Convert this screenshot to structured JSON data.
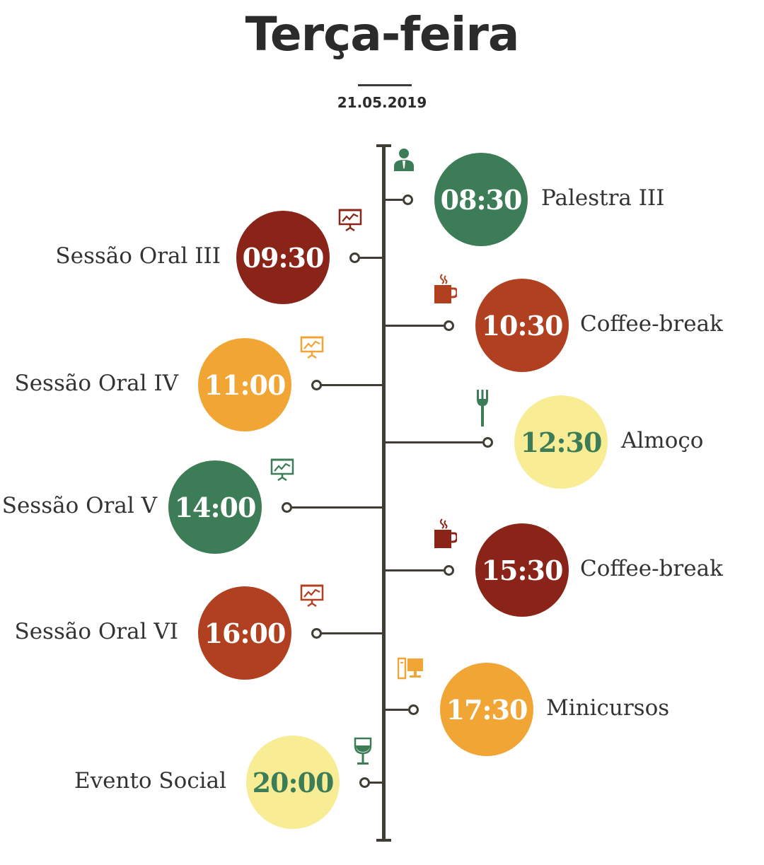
{
  "header": {
    "title": "Terça-feira",
    "date": "21.05.2019"
  },
  "colors": {
    "green": "#3c7d57",
    "dark_red": "#8b2418",
    "rust": "#b0401f",
    "orange": "#f1a535",
    "light_yellow": "#f8ec95",
    "line": "#3f3d34"
  },
  "events": [
    {
      "time": "08:30",
      "label": "Palestra III",
      "side": "right",
      "color": "#3c7d57",
      "text_color": "#ffffff",
      "icon": "speaker-person-icon",
      "icon_color": "#3c7d57"
    },
    {
      "time": "09:30",
      "label": "Sessão Oral III",
      "side": "left",
      "color": "#8b2418",
      "text_color": "#ffffff",
      "icon": "presentation-board-icon",
      "icon_color": "#8b2418"
    },
    {
      "time": "10:30",
      "label": "Coffee-break",
      "side": "right",
      "color": "#b0401f",
      "text_color": "#ffffff",
      "icon": "coffee-cup-icon",
      "icon_color": "#b0401f"
    },
    {
      "time": "11:00",
      "label": "Sessão Oral IV",
      "side": "left",
      "color": "#f1a535",
      "text_color": "#ffffff",
      "icon": "presentation-board-icon",
      "icon_color": "#f1a535"
    },
    {
      "time": "12:30",
      "label": "Almoço",
      "side": "right",
      "color": "#f8ec95",
      "text_color": "#3c7d57",
      "icon": "fork-icon",
      "icon_color": "#3c7d57"
    },
    {
      "time": "14:00",
      "label": "Sessão Oral V",
      "side": "left",
      "color": "#3c7d57",
      "text_color": "#ffffff",
      "icon": "presentation-board-icon",
      "icon_color": "#3c7d57"
    },
    {
      "time": "15:30",
      "label": "Coffee-break",
      "side": "right",
      "color": "#8b2418",
      "text_color": "#ffffff",
      "icon": "coffee-cup-icon",
      "icon_color": "#8b2418"
    },
    {
      "time": "16:00",
      "label": "Sessão Oral VI",
      "side": "left",
      "color": "#b0401f",
      "text_color": "#ffffff",
      "icon": "presentation-board-icon",
      "icon_color": "#b0401f"
    },
    {
      "time": "17:30",
      "label": "Minicursos",
      "side": "right",
      "color": "#f1a535",
      "text_color": "#ffffff",
      "icon": "computer-icon",
      "icon_color": "#f1a535"
    },
    {
      "time": "20:00",
      "label": "Evento Social",
      "side": "left",
      "color": "#f8ec95",
      "text_color": "#3c7d57",
      "icon": "wine-glass-icon",
      "icon_color": "#3c7d57"
    }
  ]
}
